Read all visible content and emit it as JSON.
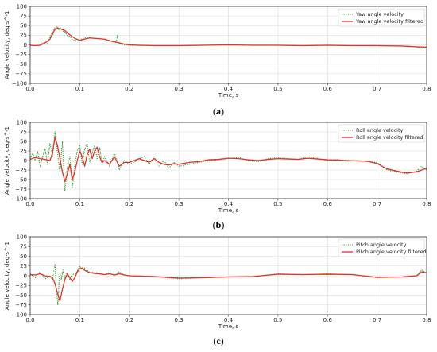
{
  "chart_data": [
    {
      "type": "line",
      "panel_label": "a",
      "xlabel": "Time, s",
      "ylabel": "Angle velocity, deg·s^-1",
      "xlim": [
        0.0,
        0.8
      ],
      "ylim": [
        -100,
        100
      ],
      "x_ticks": [
        0.0,
        0.1,
        0.2,
        0.3,
        0.4,
        0.5,
        0.6,
        0.7,
        0.8
      ],
      "y_ticks": [
        -100,
        -75,
        -50,
        -25,
        0,
        25,
        50,
        75,
        100
      ],
      "x_tick_labels": [
        "0.0",
        "0.1",
        "0.2",
        "0.3",
        "0.4",
        "0.5",
        "0.6",
        "0.7",
        "0.8"
      ],
      "y_tick_labels": [
        "−100",
        "−75",
        "−50",
        "−25",
        "0",
        "25",
        "50",
        "75",
        "100"
      ],
      "grid": true,
      "legend_position": "top-right",
      "series": [
        {
          "name": "Yaw angle velocity",
          "color": "#2ca02c",
          "style": "dotted",
          "x": [
            0.0,
            0.01,
            0.02,
            0.025,
            0.03,
            0.035,
            0.04,
            0.043,
            0.046,
            0.048,
            0.05,
            0.052,
            0.055,
            0.058,
            0.06,
            0.063,
            0.066,
            0.07,
            0.075,
            0.08,
            0.085,
            0.09,
            0.095,
            0.1,
            0.105,
            0.11,
            0.12,
            0.13,
            0.14,
            0.15,
            0.16,
            0.17,
            0.174,
            0.176,
            0.178,
            0.18,
            0.19,
            0.2,
            0.25,
            0.3,
            0.35,
            0.4,
            0.45,
            0.5,
            0.55,
            0.6,
            0.65,
            0.7,
            0.75,
            0.78,
            0.79,
            0.8
          ],
          "y": [
            -1,
            -2,
            -1,
            5,
            8,
            4,
            20,
            30,
            25,
            40,
            44,
            45,
            48,
            38,
            44,
            41,
            36,
            33,
            24,
            22,
            14,
            12,
            10,
            11,
            16,
            18,
            19,
            17,
            17,
            14,
            10,
            7,
            10,
            25,
            8,
            3,
            0,
            -1,
            -2,
            -2,
            -1,
            0,
            -1,
            -1,
            -2,
            -1,
            -2,
            -2,
            -3,
            -5,
            -8,
            -6
          ]
        },
        {
          "name": "Yaw angle velocity filtered",
          "color": "#e8302a",
          "style": "solid",
          "x": [
            0.0,
            0.01,
            0.02,
            0.03,
            0.04,
            0.045,
            0.05,
            0.055,
            0.06,
            0.065,
            0.07,
            0.075,
            0.08,
            0.09,
            0.1,
            0.11,
            0.12,
            0.13,
            0.14,
            0.15,
            0.16,
            0.17,
            0.18,
            0.19,
            0.2,
            0.22,
            0.25,
            0.3,
            0.35,
            0.4,
            0.45,
            0.5,
            0.55,
            0.6,
            0.65,
            0.7,
            0.75,
            0.78,
            0.8
          ],
          "y": [
            -1,
            -2,
            -1,
            5,
            15,
            30,
            40,
            43,
            42,
            40,
            37,
            32,
            26,
            17,
            12,
            15,
            18,
            17,
            16,
            15,
            11,
            8,
            5,
            2,
            0,
            -1,
            -2,
            -2,
            -1,
            0,
            -1,
            -1,
            -2,
            -1,
            -2,
            -2,
            -3,
            -5,
            -6
          ]
        }
      ]
    },
    {
      "type": "line",
      "panel_label": "b",
      "xlabel": "Time, s",
      "ylabel": "Angle velocity, deg·s^-1",
      "xlim": [
        0.0,
        0.8
      ],
      "ylim": [
        -100,
        100
      ],
      "x_ticks": [
        0.0,
        0.1,
        0.2,
        0.3,
        0.4,
        0.5,
        0.6,
        0.7,
        0.8
      ],
      "y_ticks": [
        -100,
        -75,
        -50,
        -25,
        0,
        25,
        50,
        75,
        100
      ],
      "x_tick_labels": [
        "0.0",
        "0.1",
        "0.2",
        "0.3",
        "0.4",
        "0.5",
        "0.6",
        "0.7",
        "0.8"
      ],
      "y_tick_labels": [
        "−100",
        "−75",
        "−50",
        "−25",
        "0",
        "25",
        "50",
        "75",
        "100"
      ],
      "grid": true,
      "legend_position": "top-right",
      "series": [
        {
          "name": "Roll angle velocity",
          "color": "#2ca02c",
          "style": "dotted",
          "x": [
            0.0,
            0.005,
            0.01,
            0.015,
            0.02,
            0.025,
            0.03,
            0.035,
            0.04,
            0.045,
            0.05,
            0.055,
            0.06,
            0.065,
            0.07,
            0.075,
            0.08,
            0.085,
            0.09,
            0.095,
            0.1,
            0.105,
            0.11,
            0.115,
            0.12,
            0.125,
            0.13,
            0.135,
            0.14,
            0.145,
            0.15,
            0.16,
            0.17,
            0.18,
            0.19,
            0.2,
            0.21,
            0.22,
            0.23,
            0.24,
            0.25,
            0.26,
            0.27,
            0.28,
            0.29,
            0.3,
            0.32,
            0.34,
            0.36,
            0.38,
            0.4,
            0.42,
            0.44,
            0.46,
            0.48,
            0.5,
            0.52,
            0.54,
            0.56,
            0.58,
            0.6,
            0.62,
            0.64,
            0.66,
            0.68,
            0.7,
            0.72,
            0.74,
            0.76,
            0.78,
            0.79,
            0.8
          ],
          "y": [
            5,
            20,
            0,
            25,
            -15,
            10,
            30,
            -10,
            45,
            10,
            75,
            20,
            -30,
            50,
            -80,
            -20,
            10,
            -70,
            -10,
            25,
            40,
            -10,
            30,
            45,
            -5,
            20,
            40,
            5,
            35,
            -10,
            10,
            -15,
            20,
            -25,
            0,
            -10,
            -5,
            5,
            10,
            -10,
            10,
            -15,
            0,
            -20,
            -5,
            -15,
            -10,
            -5,
            0,
            2,
            5,
            8,
            0,
            -3,
            5,
            7,
            5,
            3,
            10,
            5,
            0,
            3,
            -2,
            0,
            -2,
            -5,
            -25,
            -30,
            -35,
            -28,
            -15,
            -25
          ]
        },
        {
          "name": "Roll angle velocity filtered",
          "color": "#e8302a",
          "style": "solid",
          "x": [
            0.0,
            0.01,
            0.02,
            0.03,
            0.04,
            0.045,
            0.05,
            0.055,
            0.06,
            0.065,
            0.07,
            0.075,
            0.08,
            0.085,
            0.09,
            0.095,
            0.1,
            0.105,
            0.11,
            0.115,
            0.12,
            0.125,
            0.13,
            0.135,
            0.14,
            0.145,
            0.15,
            0.16,
            0.17,
            0.18,
            0.19,
            0.2,
            0.21,
            0.22,
            0.23,
            0.24,
            0.25,
            0.26,
            0.27,
            0.28,
            0.29,
            0.3,
            0.32,
            0.34,
            0.36,
            0.38,
            0.4,
            0.42,
            0.44,
            0.46,
            0.48,
            0.5,
            0.52,
            0.54,
            0.56,
            0.58,
            0.6,
            0.62,
            0.64,
            0.66,
            0.68,
            0.7,
            0.72,
            0.74,
            0.76,
            0.78,
            0.79,
            0.8
          ],
          "y": [
            3,
            8,
            5,
            3,
            0,
            20,
            60,
            40,
            5,
            -30,
            -55,
            -35,
            -10,
            -50,
            -30,
            0,
            25,
            10,
            -15,
            15,
            30,
            5,
            25,
            35,
            10,
            -5,
            0,
            -10,
            10,
            -15,
            -5,
            -5,
            0,
            5,
            0,
            -5,
            5,
            -5,
            -10,
            -12,
            -8,
            -10,
            -5,
            -3,
            2,
            3,
            6,
            5,
            2,
            0,
            3,
            5,
            4,
            3,
            6,
            4,
            2,
            1,
            0,
            -1,
            -2,
            -8,
            -22,
            -28,
            -33,
            -30,
            -25,
            -20
          ]
        }
      ]
    },
    {
      "type": "line",
      "panel_label": "c",
      "xlabel": "Time, s",
      "ylabel": "Angle velocity, deg·s^-1",
      "xlim": [
        0.0,
        0.8
      ],
      "ylim": [
        -100,
        100
      ],
      "x_ticks": [
        0.0,
        0.1,
        0.2,
        0.3,
        0.4,
        0.5,
        0.6,
        0.7,
        0.8
      ],
      "y_ticks": [
        -100,
        -75,
        -50,
        -25,
        0,
        25,
        50,
        75,
        100
      ],
      "x_tick_labels": [
        "0.0",
        "0.1",
        "0.2",
        "0.3",
        "0.4",
        "0.5",
        "0.6",
        "0.7",
        "0.8"
      ],
      "y_tick_labels": [
        "−100",
        "−75",
        "−50",
        "−25",
        "0",
        "25",
        "50",
        "75",
        "100"
      ],
      "grid": true,
      "legend_position": "top-right",
      "series": [
        {
          "name": "Pitch angle velocity",
          "color": "#2ca02c",
          "style": "dotted",
          "x": [
            0.0,
            0.01,
            0.02,
            0.03,
            0.04,
            0.045,
            0.05,
            0.053,
            0.056,
            0.058,
            0.06,
            0.063,
            0.066,
            0.07,
            0.075,
            0.08,
            0.085,
            0.09,
            0.095,
            0.1,
            0.105,
            0.11,
            0.12,
            0.13,
            0.14,
            0.15,
            0.16,
            0.17,
            0.18,
            0.19,
            0.2,
            0.25,
            0.3,
            0.35,
            0.4,
            0.45,
            0.5,
            0.55,
            0.6,
            0.65,
            0.7,
            0.75,
            0.78,
            0.79,
            0.8
          ],
          "y": [
            5,
            -5,
            10,
            -8,
            0,
            -10,
            30,
            -40,
            -75,
            -20,
            5,
            -10,
            15,
            -5,
            8,
            -10,
            5,
            3,
            12,
            25,
            15,
            20,
            8,
            10,
            5,
            3,
            8,
            0,
            10,
            2,
            0,
            -2,
            -8,
            -5,
            -3,
            -2,
            5,
            3,
            5,
            3,
            -5,
            -3,
            0,
            15,
            5
          ]
        },
        {
          "name": "Pitch angle velocity filtered",
          "color": "#e8302a",
          "style": "solid",
          "x": [
            0.0,
            0.01,
            0.02,
            0.03,
            0.04,
            0.045,
            0.05,
            0.055,
            0.06,
            0.065,
            0.07,
            0.075,
            0.08,
            0.085,
            0.09,
            0.095,
            0.1,
            0.105,
            0.11,
            0.12,
            0.13,
            0.14,
            0.15,
            0.16,
            0.17,
            0.18,
            0.19,
            0.2,
            0.25,
            0.3,
            0.35,
            0.4,
            0.45,
            0.5,
            0.55,
            0.6,
            0.65,
            0.7,
            0.75,
            0.78,
            0.79,
            0.8
          ],
          "y": [
            3,
            2,
            5,
            0,
            -2,
            -5,
            -20,
            -45,
            -65,
            -35,
            -10,
            5,
            -5,
            -15,
            -5,
            10,
            18,
            20,
            14,
            8,
            6,
            5,
            3,
            5,
            2,
            5,
            2,
            0,
            -2,
            -6,
            -5,
            -3,
            -2,
            4,
            3,
            4,
            3,
            -4,
            -3,
            0,
            10,
            8
          ]
        }
      ]
    }
  ],
  "captions": [
    "(a)",
    "(b)",
    "(c)"
  ]
}
